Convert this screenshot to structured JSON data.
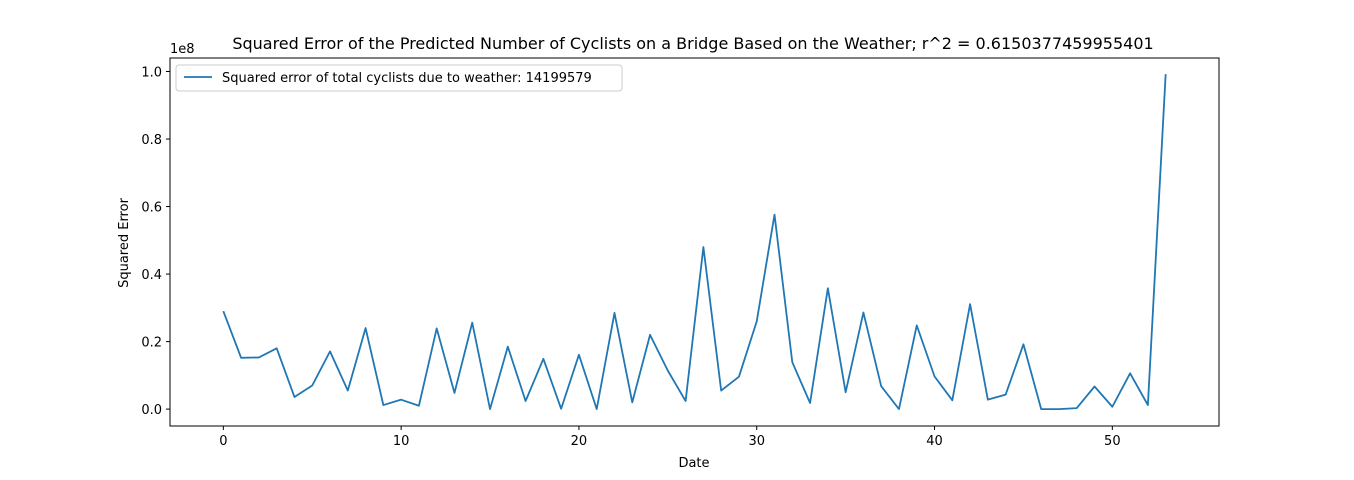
{
  "chart_data": {
    "type": "line",
    "title": "Squared Error of the Predicted Number of Cyclists on a Bridge Based on the Weather; r^2 = 0.6150377459955401",
    "xlabel": "Date",
    "ylabel": "Squared Error",
    "y_offset_label": "1e8",
    "xlim": [
      -3,
      56
    ],
    "ylim": [
      -0.05,
      1.04
    ],
    "x_ticks": [
      0,
      10,
      20,
      30,
      40,
      50
    ],
    "x_tick_labels": [
      "0",
      "10",
      "20",
      "30",
      "40",
      "50"
    ],
    "y_ticks": [
      0.0,
      0.2,
      0.4,
      0.6,
      0.8,
      1.0
    ],
    "y_tick_labels": [
      "0.0",
      "0.2",
      "0.4",
      "0.6",
      "0.8",
      "1.0"
    ],
    "grid": false,
    "legend_position": "top-left",
    "series": [
      {
        "name": "Squared error of total cyclists due to weather: 14199579",
        "color": "#1f77b4",
        "x": [
          0,
          1,
          2,
          3,
          4,
          5,
          6,
          7,
          8,
          9,
          10,
          11,
          12,
          13,
          14,
          15,
          16,
          17,
          18,
          19,
          20,
          21,
          22,
          23,
          24,
          25,
          26,
          27,
          28,
          29,
          30,
          31,
          32,
          33,
          34,
          35,
          36,
          37,
          38,
          39,
          40,
          41,
          42,
          43,
          44,
          45,
          46,
          47,
          48,
          49,
          50,
          51,
          52,
          53
        ],
        "values": [
          0.29,
          0.152,
          0.153,
          0.18,
          0.036,
          0.07,
          0.171,
          0.055,
          0.24,
          0.012,
          0.028,
          0.01,
          0.239,
          0.048,
          0.256,
          0.0,
          0.185,
          0.024,
          0.149,
          0.001,
          0.161,
          0.0,
          0.285,
          0.02,
          0.22,
          0.114,
          0.024,
          0.48,
          0.055,
          0.096,
          0.26,
          0.576,
          0.139,
          0.018,
          0.358,
          0.05,
          0.286,
          0.068,
          0.0,
          0.248,
          0.097,
          0.026,
          0.311,
          0.028,
          0.043,
          0.192,
          0.0,
          0.0,
          0.003,
          0.067,
          0.007,
          0.106,
          0.012,
          0.992
        ]
      }
    ]
  }
}
